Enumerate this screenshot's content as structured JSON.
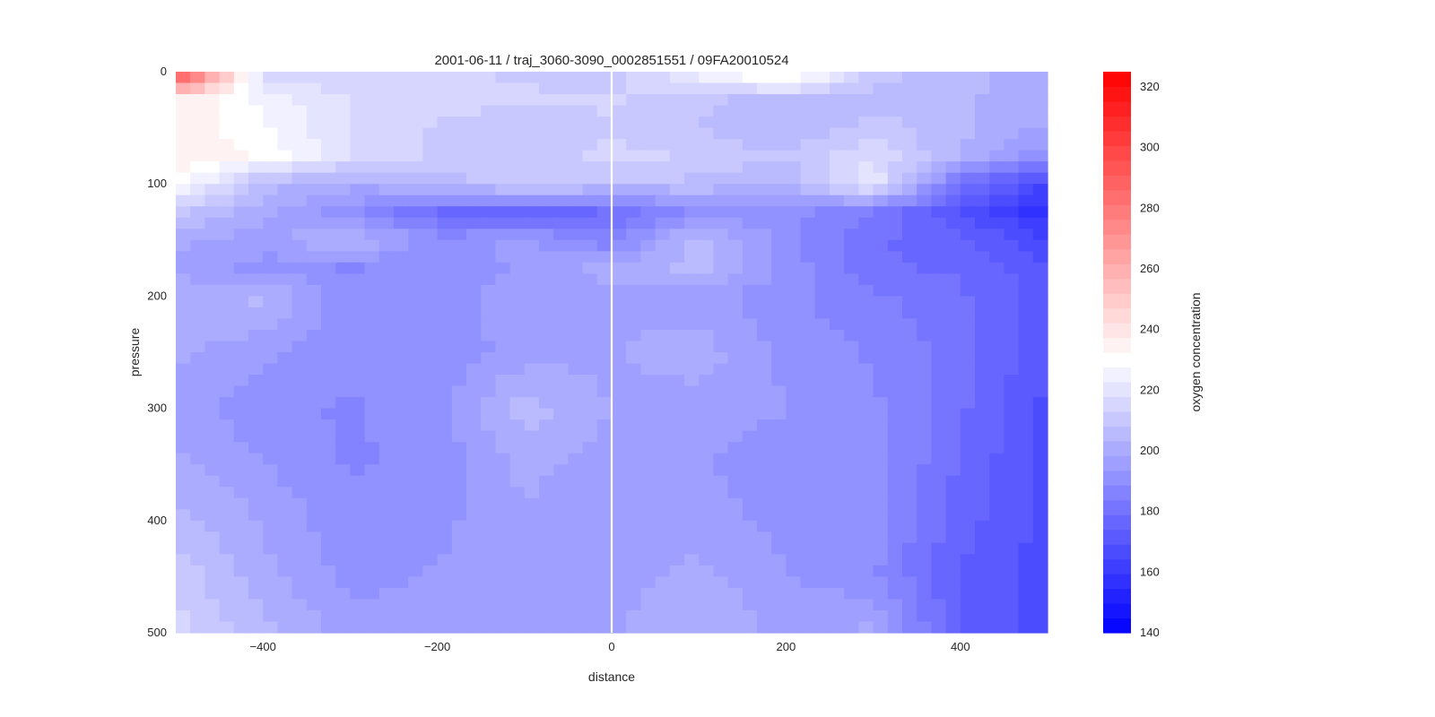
{
  "chart_data": {
    "type": "heatmap",
    "title": "2001-06-11 / traj_3060-3090_0002851551 / 09FA20010524",
    "xlabel": "distance",
    "ylabel": "pressure",
    "xlim": [
      -500,
      500
    ],
    "ylim": [
      500,
      0
    ],
    "y_inverted": true,
    "x_ticks": [
      -400,
      -200,
      0,
      200,
      400
    ],
    "y_ticks": [
      0,
      100,
      200,
      300,
      400,
      500
    ],
    "grid": false,
    "vertical_marker_x": 0,
    "colorbar": {
      "label": "oxygen concentration",
      "min": 140,
      "max": 325,
      "ticks": [
        140,
        160,
        180,
        200,
        220,
        240,
        260,
        280,
        300,
        320
      ],
      "low_color": "#0000ff",
      "mid_value": 230,
      "mid_color": "#ffffff",
      "high_color": "#ff0000",
      "levels": 38
    },
    "x": [
      -500,
      -400,
      -300,
      -200,
      -100,
      0,
      100,
      200,
      300,
      400,
      500
    ],
    "y": [
      0,
      25,
      50,
      75,
      100,
      125,
      150,
      175,
      200,
      250,
      300,
      350,
      400,
      450,
      500
    ],
    "z": [
      [
        305,
        215,
        212,
        214,
        212,
        210,
        225,
        240,
        210,
        205,
        200
      ],
      [
        238,
        226,
        218,
        215,
        214,
        214,
        210,
        205,
        207,
        204,
        200
      ],
      [
        236,
        228,
        218,
        212,
        210,
        212,
        208,
        204,
        210,
        205,
        198
      ],
      [
        236,
        232,
        218,
        212,
        210,
        215,
        212,
        208,
        218,
        202,
        190
      ],
      [
        232,
        205,
        200,
        205,
        212,
        208,
        207,
        205,
        222,
        180,
        165
      ],
      [
        210,
        200,
        190,
        178,
        175,
        180,
        190,
        190,
        185,
        170,
        155
      ],
      [
        200,
        195,
        205,
        190,
        195,
        185,
        208,
        190,
        180,
        175,
        165
      ],
      [
        198,
        192,
        188,
        192,
        194,
        200,
        205,
        192,
        180,
        178,
        170
      ],
      [
        200,
        205,
        190,
        192,
        195,
        197,
        196,
        190,
        185,
        180,
        172
      ],
      [
        200,
        195,
        190,
        190,
        196,
        198,
        201,
        192,
        188,
        182,
        170
      ],
      [
        196,
        190,
        188,
        192,
        206,
        198,
        196,
        194,
        190,
        180,
        168
      ],
      [
        200,
        194,
        188,
        190,
        200,
        196,
        194,
        190,
        192,
        178,
        168
      ],
      [
        205,
        198,
        190,
        192,
        198,
        194,
        196,
        192,
        190,
        176,
        168
      ],
      [
        212,
        200,
        192,
        194,
        196,
        196,
        200,
        194,
        190,
        174,
        166
      ],
      [
        215,
        205,
        196,
        196,
        198,
        198,
        204,
        196,
        200,
        174,
        166
      ]
    ]
  }
}
